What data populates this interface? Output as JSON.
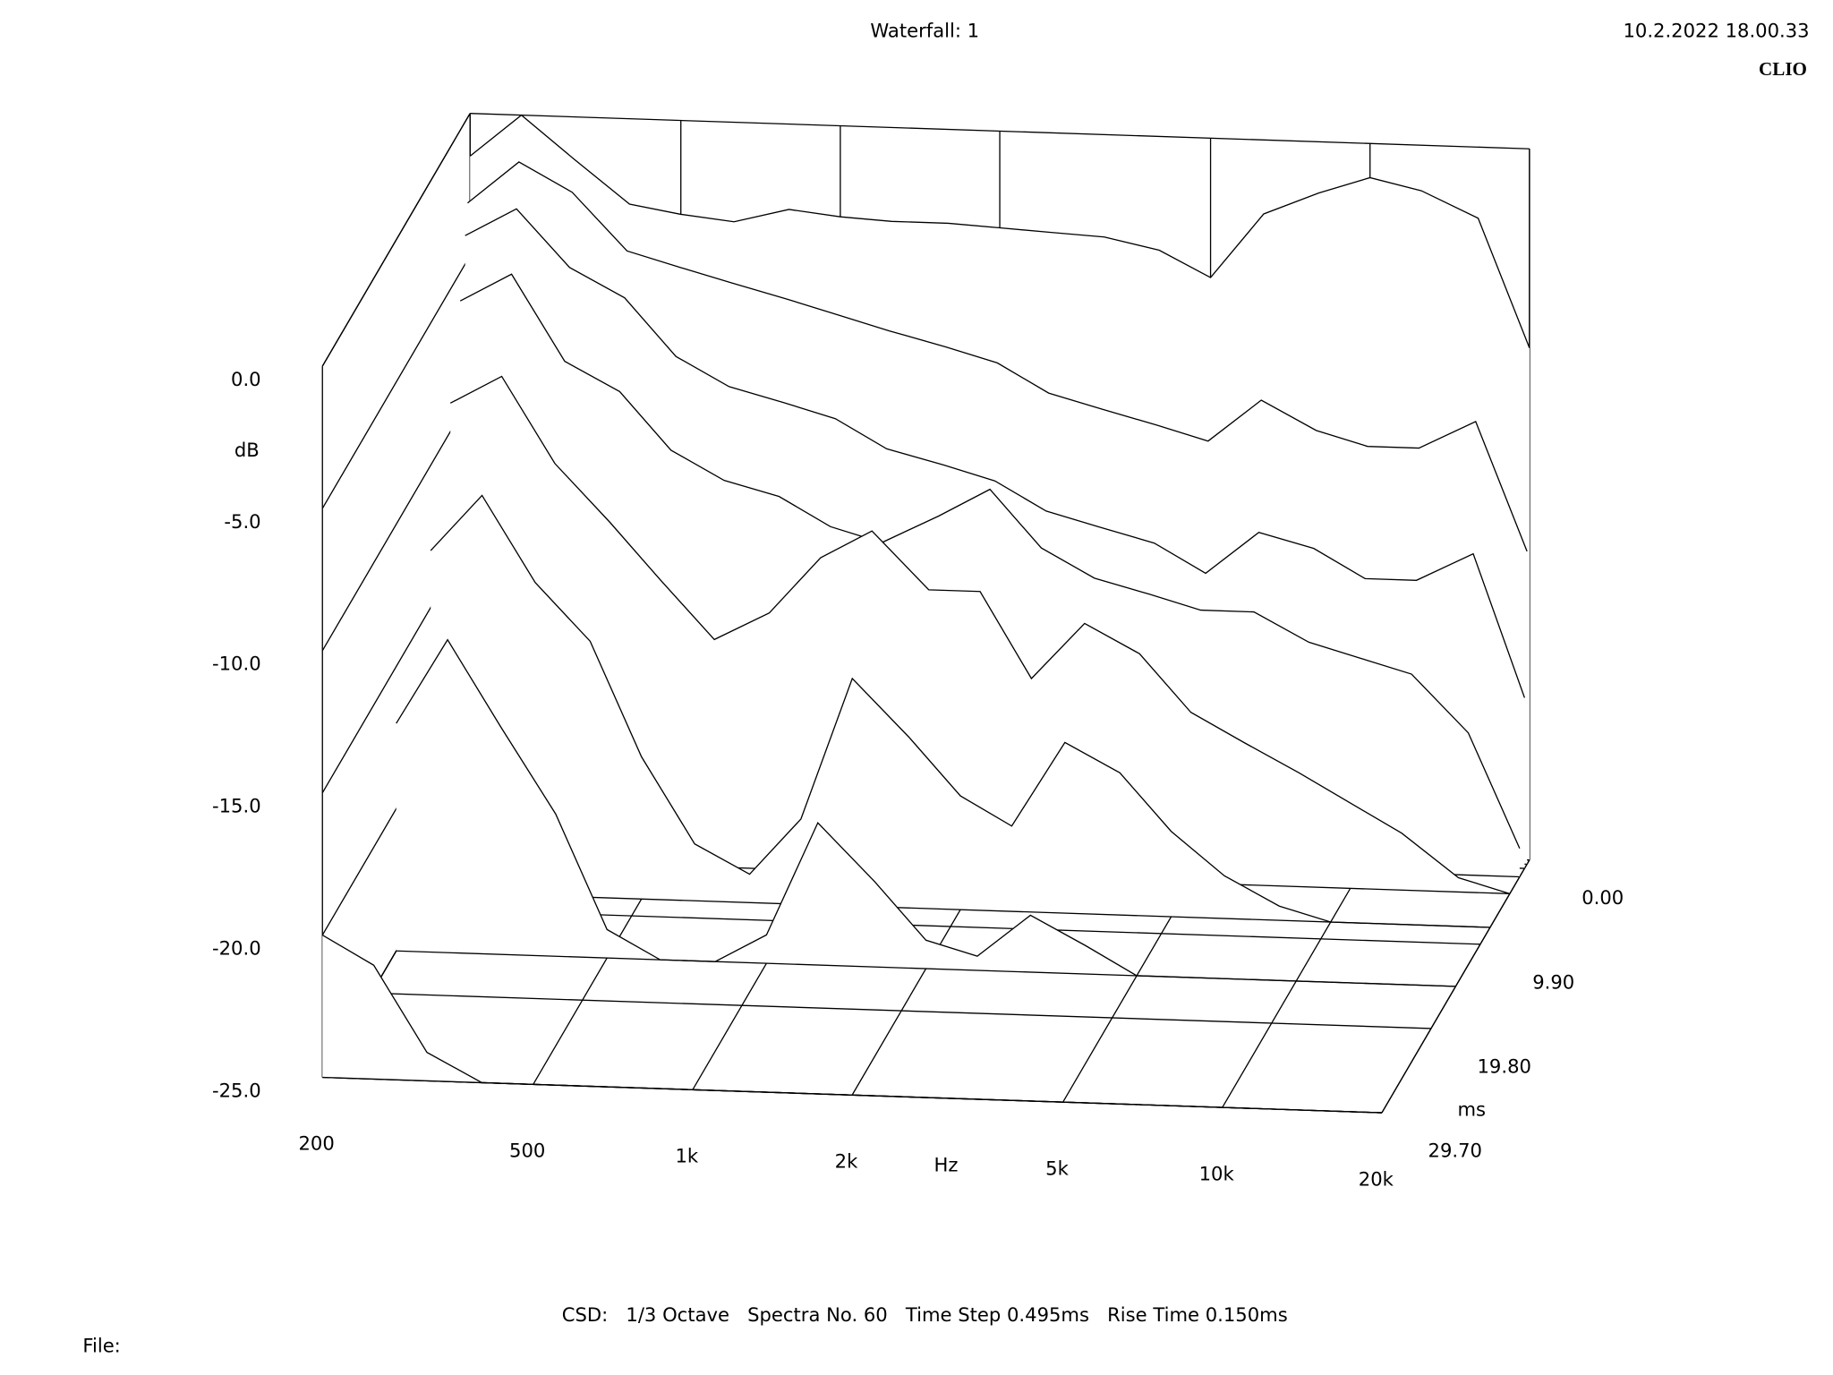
{
  "chart_data": {
    "type": "waterfall",
    "title": "Waterfall: 1",
    "timestamp": "10.2.2022 18.00.33",
    "brand": "CLIO",
    "x_label": "Hz",
    "y_label": "dB",
    "z_label": "ms",
    "log_x": true,
    "color": "#000000",
    "x": [
      200,
      250,
      315,
      400,
      500,
      630,
      800,
      1000,
      1250,
      1600,
      2000,
      2500,
      3150,
      4000,
      5000,
      6300,
      8000,
      10000,
      12500,
      16000,
      20000
    ],
    "xlim": [
      200,
      20000
    ],
    "xticks": [
      200,
      500,
      {
        "value": 1000,
        "label": "1k"
      },
      {
        "value": 2000,
        "label": "2k"
      },
      {
        "value": 5000,
        "label": "5k"
      },
      {
        "value": 10000,
        "label": "10k"
      },
      {
        "value": 20000,
        "label": "20k"
      }
    ],
    "ylim": [
      -25,
      0
    ],
    "yticks": [
      {
        "value": 0,
        "label": "0.0"
      },
      {
        "value": -5,
        "label": "-5.0"
      },
      {
        "value": -10,
        "label": "-10.0"
      },
      {
        "value": -15,
        "label": "-15.0"
      },
      {
        "value": -20,
        "label": "-20.0"
      },
      {
        "value": -25,
        "label": "-25.0"
      }
    ],
    "zlim": [
      0,
      29.7
    ],
    "zticks": [
      {
        "value": 0,
        "label": "0.00"
      },
      {
        "value": 9.9,
        "label": "9.90"
      },
      {
        "value": 19.8,
        "label": "19.80"
      },
      {
        "value": 29.7,
        "label": "29.70"
      }
    ],
    "series": [
      {
        "time": 0,
        "values": [
          -1.5,
          0,
          -1.5,
          -3,
          -3.3,
          -3.5,
          -3,
          -3.2,
          -3.3,
          -3.3,
          -3.4,
          -3.5,
          -3.6,
          -4,
          -4.9,
          -2.6,
          -1.8,
          -1.2,
          -1.6,
          -2.5,
          -7
        ]
      },
      {
        "time": 0.495,
        "values": [
          -3,
          -1.5,
          -2.5,
          -4.5,
          -5,
          -5.5,
          -6,
          -6.5,
          -7,
          -7.5,
          -8,
          -9,
          -9.5,
          -10,
          -10.5,
          -9,
          -10,
          -10.5,
          -10.5,
          -9.5,
          -14
        ]
      },
      {
        "time": 0.99,
        "values": [
          -4,
          -3,
          -5,
          -6,
          -8,
          -9,
          -9.5,
          -10,
          -11,
          -11.5,
          -12,
          -13,
          -13.5,
          -14,
          -15,
          -13.5,
          -14,
          -15,
          -15,
          -14,
          -19
        ]
      },
      {
        "time": 1.98,
        "values": [
          -6,
          -5,
          -8,
          -9,
          -11,
          -12,
          -12.5,
          -13.5,
          -14,
          -13,
          -12,
          -14,
          -15,
          -15.5,
          -16,
          -16,
          -17,
          -17.5,
          -18,
          -20,
          -24
        ]
      },
      {
        "time": 3.96,
        "values": [
          -9,
          -8,
          -11,
          -13,
          -15,
          -17,
          -16,
          -14,
          -13,
          -15,
          -15,
          -18,
          -16,
          -17,
          -19,
          -20,
          -21,
          -22,
          -23,
          -24.5,
          -25
        ]
      },
      {
        "time": 7.92,
        "values": [
          -13,
          -11,
          -14,
          -16,
          -20,
          -23,
          -24,
          -22,
          -17,
          -19,
          -21,
          -22,
          -19,
          -20,
          -22,
          -23.5,
          -24.5,
          -25,
          -25,
          -25,
          -25
        ]
      },
      {
        "time": 14.85,
        "values": [
          -17,
          -14,
          -17,
          -20,
          -24,
          -25,
          -25,
          -24,
          -20,
          -22,
          -24,
          -24.5,
          -23,
          -24,
          -25,
          -25,
          -25,
          -25,
          -25,
          -25,
          -25
        ]
      },
      {
        "time": 29.7,
        "values": [
          -20,
          -21,
          -24,
          -25,
          -25,
          -25,
          -25,
          -25,
          -25,
          -25,
          -25,
          -25,
          -25,
          -25,
          -25,
          -25,
          -25,
          -25,
          -25,
          -25,
          -25
        ]
      }
    ],
    "footer": "CSD:   1/3 Octave   Spectra No. 60   Time Step 0.495ms   Rise Time 0.150ms",
    "file_label": "File:"
  }
}
